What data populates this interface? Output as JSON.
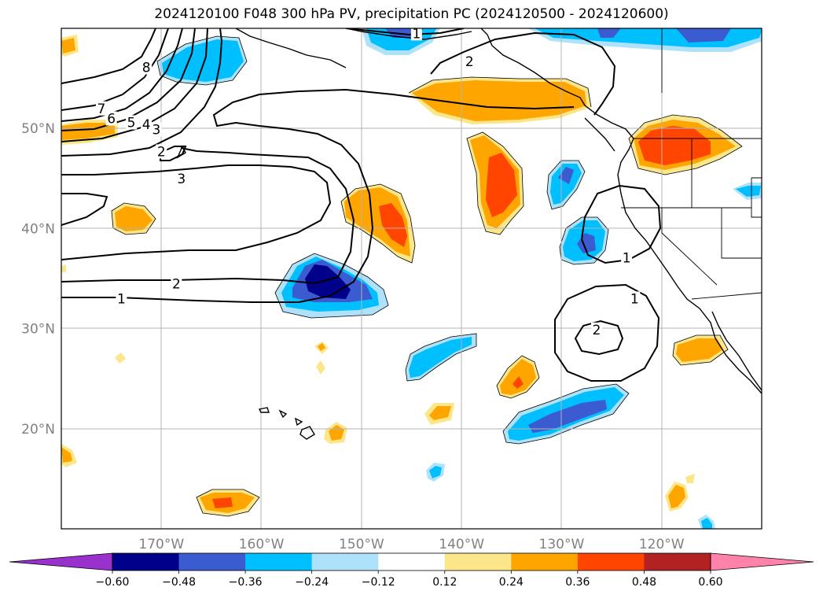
{
  "title": "2024120100 F048 300 hPa PV, precipitation PC (2024120500 - 2024120600)",
  "chart_data": {
    "type": "heatmap",
    "title": "2024120100 F048 300 hPa PV, precipitation PC (2024120500 - 2024120600)",
    "map_extent": {
      "lon": [
        -180,
        -110
      ],
      "lat": [
        10,
        60
      ]
    },
    "grid": true,
    "lat_ticks": [
      {
        "value": 50,
        "label": "50°N"
      },
      {
        "value": 40,
        "label": "40°N"
      },
      {
        "value": 30,
        "label": "30°N"
      },
      {
        "value": 20,
        "label": "20°N"
      }
    ],
    "lon_ticks": [
      {
        "value": -170,
        "label": "170°W"
      },
      {
        "value": -160,
        "label": "160°W"
      },
      {
        "value": -150,
        "label": "150°W"
      },
      {
        "value": -140,
        "label": "140°W"
      },
      {
        "value": -130,
        "label": "130°W"
      },
      {
        "value": -120,
        "label": "120°W"
      }
    ],
    "colorbar": {
      "levels": [
        -0.6,
        -0.48,
        -0.36,
        -0.24,
        -0.12,
        0.12,
        0.24,
        0.36,
        0.48,
        0.6
      ],
      "tick_labels": [
        "−0.60",
        "−0.48",
        "−0.36",
        "−0.24",
        "−0.12",
        "0.12",
        "0.24",
        "0.36",
        "0.48",
        "0.60"
      ],
      "colors": [
        "#9932cc",
        "#00008b",
        "#3b5bd0",
        "#00bfff",
        "#aee2fa",
        "#ffffff",
        "#fce68a",
        "#ffa500",
        "#ff4500",
        "#b22222",
        "#ff82ab"
      ],
      "extend": "both"
    },
    "pv_contour_labels": [
      {
        "value": 1,
        "lon": -174,
        "lat": 33.0
      },
      {
        "value": 2,
        "lon": -168.5,
        "lat": 34.5
      },
      {
        "value": 3,
        "lon": -168,
        "lat": 45.0
      },
      {
        "value": 2,
        "lon": -170,
        "lat": 47.7
      },
      {
        "value": 3,
        "lon": -170.5,
        "lat": 49.9
      },
      {
        "value": 4,
        "lon": -171.5,
        "lat": 50.4
      },
      {
        "value": 5,
        "lon": -173,
        "lat": 50.6
      },
      {
        "value": 6,
        "lon": -175,
        "lat": 51.0
      },
      {
        "value": 7,
        "lon": -176,
        "lat": 52.0
      },
      {
        "value": 8,
        "lon": -171.5,
        "lat": 56.1
      },
      {
        "value": 1,
        "lon": -144.5,
        "lat": 59.5
      },
      {
        "value": 2,
        "lon": -139.2,
        "lat": 56.7
      },
      {
        "value": 1,
        "lon": -123.5,
        "lat": 37.1
      },
      {
        "value": 1,
        "lon": -122.7,
        "lat": 33.0
      },
      {
        "value": 2,
        "lon": -126.5,
        "lat": 29.9
      }
    ],
    "precip_pc_anomalies": [
      {
        "sign": "negative",
        "max_abs_level": 0.48,
        "center_lon": -153,
        "center_lat": 34
      },
      {
        "sign": "positive",
        "max_abs_level": 0.36,
        "center_lon": -148,
        "center_lat": 41
      },
      {
        "sign": "positive",
        "max_abs_level": 0.36,
        "center_lon": -136.5,
        "center_lat": 45
      },
      {
        "sign": "positive",
        "max_abs_level": 0.24,
        "center_lon": -139,
        "center_lat": 54
      },
      {
        "sign": "positive",
        "max_abs_level": 0.36,
        "center_lon": -121,
        "center_lat": 49.5
      },
      {
        "sign": "negative",
        "max_abs_level": 0.36,
        "center_lon": -129.5,
        "center_lat": 45
      },
      {
        "sign": "negative",
        "max_abs_level": 0.36,
        "center_lon": -128,
        "center_lat": 39
      },
      {
        "sign": "negative",
        "max_abs_level": 0.36,
        "center_lon": -127.5,
        "center_lat": 58.5
      },
      {
        "sign": "negative",
        "max_abs_level": 0.36,
        "center_lon": -163,
        "center_lat": 56.5
      },
      {
        "sign": "negative",
        "max_abs_level": 0.36,
        "center_lon": -129.5,
        "center_lat": 22.5
      },
      {
        "sign": "negative",
        "max_abs_level": 0.24,
        "center_lon": -142.5,
        "center_lat": 28.5
      },
      {
        "sign": "positive",
        "max_abs_level": 0.36,
        "center_lon": -135,
        "center_lat": 25.5
      },
      {
        "sign": "positive",
        "max_abs_level": 0.24,
        "center_lon": -118,
        "center_lat": 28
      },
      {
        "sign": "positive",
        "max_abs_level": 0.36,
        "center_lon": -164.5,
        "center_lat": 12.6
      },
      {
        "sign": "positive",
        "max_abs_level": 0.24,
        "center_lon": -172.5,
        "center_lat": 40
      }
    ]
  }
}
